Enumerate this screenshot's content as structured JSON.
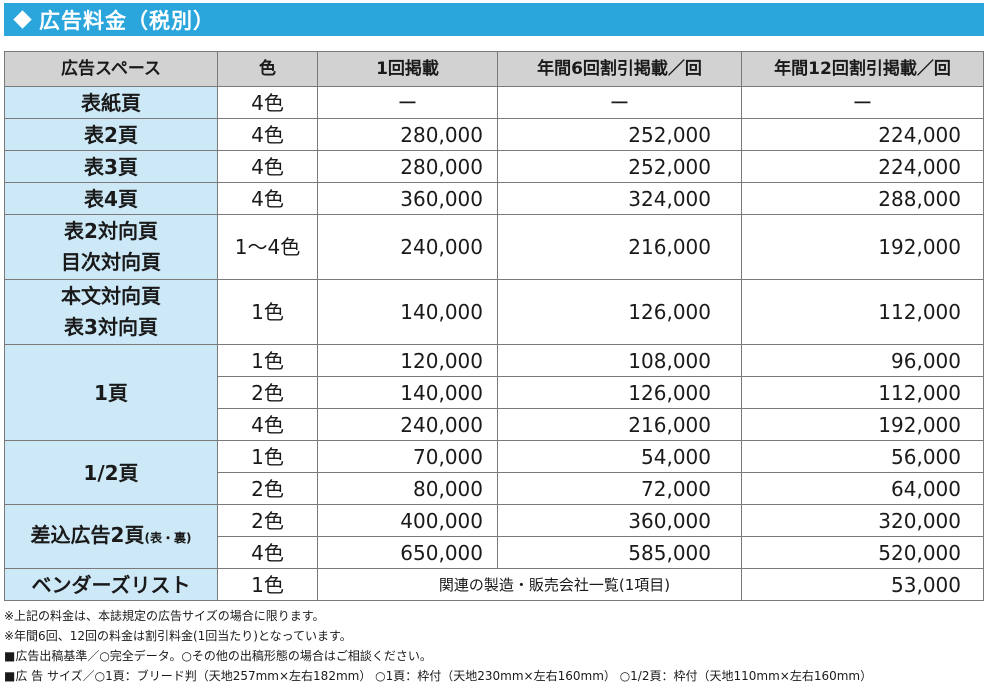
{
  "header": {
    "title": "広告料金（税別）",
    "icon": "diamond-icon",
    "bar_color": "#2ba6dd"
  },
  "table": {
    "columns": [
      "広告スペース",
      "色",
      "1回掲載",
      "年間6回割引掲載／回",
      "年間12回割引掲載／回"
    ],
    "colors": {
      "header_bg": "#d2d2d2",
      "space_bg": "#cde9f8"
    },
    "rows": [
      {
        "space": "表紙頁",
        "color": "4色",
        "once": "ー",
        "six": "ー",
        "twelve": "ー"
      },
      {
        "space": "表2頁",
        "color": "4色",
        "once": "280,000",
        "six": "252,000",
        "twelve": "224,000"
      },
      {
        "space": "表3頁",
        "color": "4色",
        "once": "280,000",
        "six": "252,000",
        "twelve": "224,000"
      },
      {
        "space": "表4頁",
        "color": "4色",
        "once": "360,000",
        "six": "324,000",
        "twelve": "288,000"
      },
      {
        "space_line1": "表2対向頁",
        "space_line2": "目次対向頁",
        "color": "1～4色",
        "once": "240,000",
        "six": "216,000",
        "twelve": "192,000"
      },
      {
        "space_line1": "本文対向頁",
        "space_line2": "表3対向頁",
        "color": "1色",
        "once": "140,000",
        "six": "126,000",
        "twelve": "112,000"
      }
    ],
    "page1": {
      "space": "1頁",
      "rows": [
        {
          "color": "1色",
          "once": "120,000",
          "six": "108,000",
          "twelve": "96,000"
        },
        {
          "color": "2色",
          "once": "140,000",
          "six": "126,000",
          "twelve": "112,000"
        },
        {
          "color": "4色",
          "once": "240,000",
          "six": "216,000",
          "twelve": "192,000"
        }
      ]
    },
    "half": {
      "space": "1/2頁",
      "rows": [
        {
          "color": "1色",
          "once": "70,000",
          "six": "54,000",
          "twelve": "56,000"
        },
        {
          "color": "2色",
          "once": "80,000",
          "six": "72,000",
          "twelve": "64,000"
        }
      ]
    },
    "insert": {
      "space": "差込広告2頁",
      "space_note": "(表・裏)",
      "rows": [
        {
          "color": "2色",
          "once": "400,000",
          "six": "360,000",
          "twelve": "320,000"
        },
        {
          "color": "4色",
          "once": "650,000",
          "six": "585,000",
          "twelve": "520,000"
        }
      ]
    },
    "vendor": {
      "space": "ベンダーズリスト",
      "color": "1色",
      "note": "関連の製造・販売会社一覧(1項目)",
      "twelve": "53,000"
    }
  },
  "notes": [
    "※上記の料金は、本誌規定の広告サイズの場合に限ります。",
    "※年間6回、12回の料金は割引料金(1回当たり)となっています。",
    "■広告出稿基準／○完全データ。○その他の出稿形態の場合はご相談ください。",
    "■広 告 サイズ／○1頁：ブリード判（天地257mm×左右182mm） ○1頁：枠付（天地230mm×左右160mm） ○1/2頁：枠付（天地110mm×左右160mm）"
  ]
}
